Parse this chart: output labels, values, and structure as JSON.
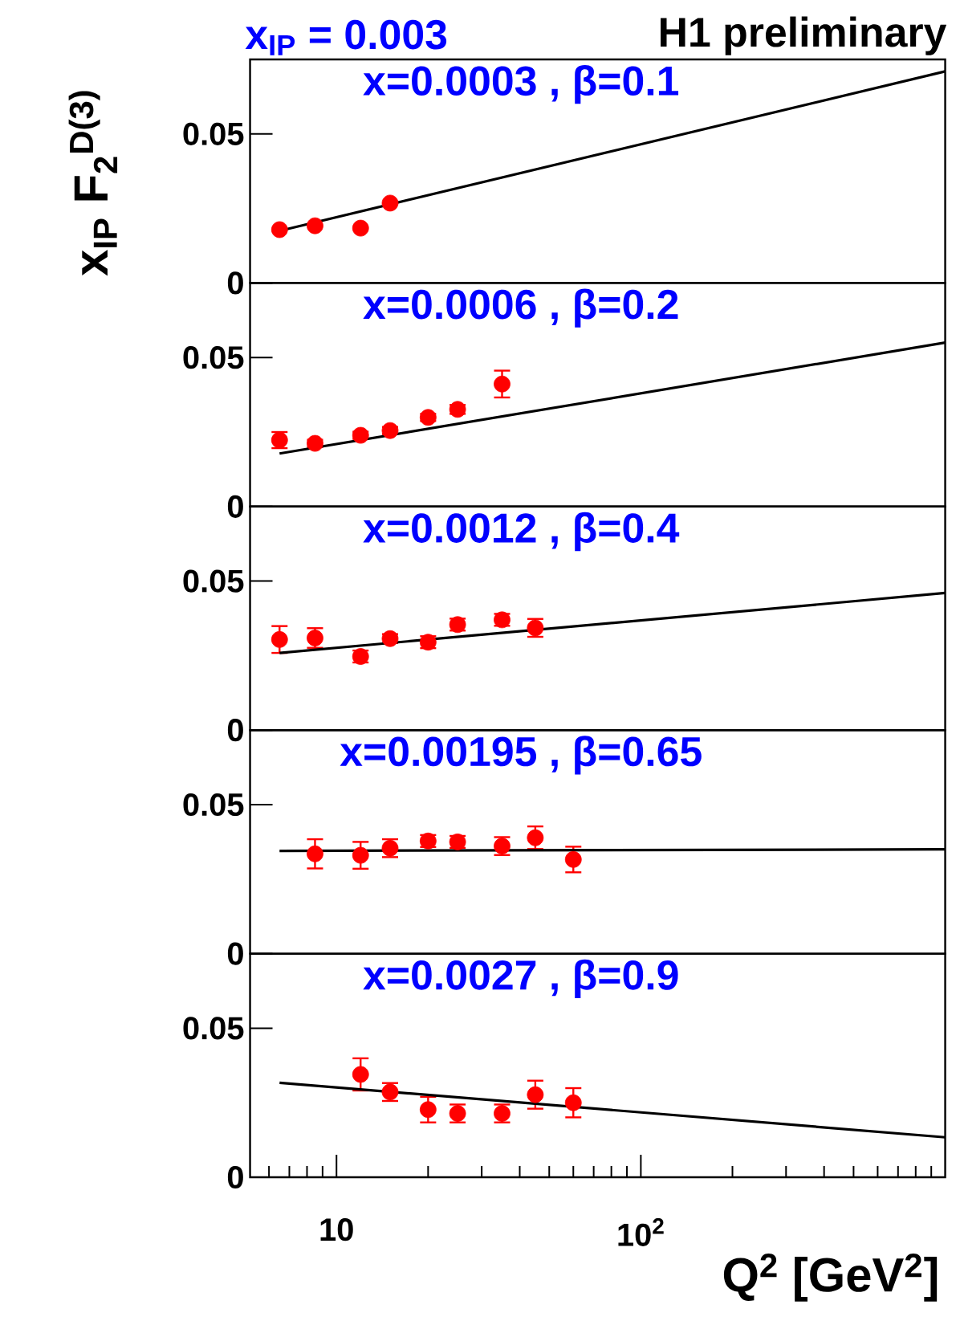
{
  "chart_data": [
    {
      "type": "scatter",
      "title": "x=0.0003 , β=0.1",
      "ylabel": "x$_{IP}$ F$_{2}$$^{D(3)}$",
      "annotations": [
        "x$_{IP}$ = 0.003",
        "H1 preliminary"
      ],
      "log": "x",
      "marker": "circle",
      "tick_labels": "y",
      "xlim": [
        5.2,
        1000
      ],
      "ylim": [
        0,
        0.075
      ],
      "yticks": [
        0,
        0.05
      ],
      "series": [
        {
          "color": "#ff0000",
          "x": [
            6.5,
            8.5,
            12,
            15
          ],
          "values": [
            0.0179,
            0.0192,
            0.0184,
            0.0268
          ]
        },
        {
          "type": "line",
          "marker": "none",
          "color": "#000000",
          "x": [
            6.5,
            1000
          ],
          "values": [
            0.0175,
            0.071
          ]
        }
      ]
    },
    {
      "type": "scatter",
      "title": "x=0.0006 , β=0.2",
      "log": "x",
      "marker": "circle",
      "tick_labels": "y",
      "xlim": [
        5.2,
        1000
      ],
      "ylim": [
        0,
        0.075
      ],
      "yticks": [
        0,
        0.05
      ],
      "series": [
        {
          "color": "#ff0000",
          "x": [
            6.5,
            8.5,
            12,
            15,
            20,
            25,
            35
          ],
          "values": [
            0.0223,
            0.0212,
            0.0239,
            0.0255,
            0.0299,
            0.0326,
            0.0411
          ],
          "errors": [
            0.0027,
            0.0012,
            0.0012,
            0.0012,
            0.0012,
            0.0015,
            0.0045
          ]
        },
        {
          "type": "line",
          "marker": "none",
          "color": "#000000",
          "x": [
            6.5,
            1000
          ],
          "values": [
            0.0178,
            0.055
          ]
        }
      ]
    },
    {
      "type": "scatter",
      "title": "x=0.0012 , β=0.4",
      "log": "x",
      "marker": "circle",
      "tick_labels": "y",
      "xlim": [
        5.2,
        1000
      ],
      "ylim": [
        0,
        0.075
      ],
      "yticks": [
        0,
        0.05
      ],
      "series": [
        {
          "color": "#ff0000",
          "x": [
            6.5,
            8.5,
            12,
            15,
            20,
            25,
            35,
            45
          ],
          "values": [
            0.0304,
            0.0309,
            0.0247,
            0.0307,
            0.0295,
            0.0354,
            0.037,
            0.0343
          ],
          "errors": [
            0.0045,
            0.0033,
            0.002,
            0.0015,
            0.002,
            0.002,
            0.002,
            0.003
          ]
        },
        {
          "type": "line",
          "marker": "none",
          "color": "#000000",
          "x": [
            6.5,
            1000
          ],
          "values": [
            0.0259,
            0.046
          ]
        }
      ]
    },
    {
      "type": "scatter",
      "title": "x=0.00195 , β=0.65",
      "log": "x",
      "marker": "circle",
      "tick_labels": "y",
      "xlim": [
        5.2,
        1000
      ],
      "ylim": [
        0,
        0.075
      ],
      "yticks": [
        0,
        0.05
      ],
      "series": [
        {
          "color": "#ff0000",
          "x": [
            8.5,
            12,
            15,
            20,
            25,
            35,
            45,
            60
          ],
          "values": [
            0.0335,
            0.033,
            0.0354,
            0.0378,
            0.0375,
            0.0361,
            0.0389,
            0.0316
          ],
          "errors": [
            0.0049,
            0.0045,
            0.003,
            0.002,
            0.002,
            0.003,
            0.0038,
            0.0043
          ]
        },
        {
          "type": "line",
          "marker": "none",
          "color": "#000000",
          "x": [
            6.5,
            1000
          ],
          "values": [
            0.0345,
            0.035
          ]
        }
      ]
    },
    {
      "type": "scatter",
      "title": "x=0.0027 , β=0.9",
      "xlabel": "Q$^{2}$ [GeV$^{2}$]",
      "log": "x",
      "marker": "circle",
      "xlim": [
        5.2,
        1000
      ],
      "ylim": [
        0,
        0.075
      ],
      "yticks": [
        0,
        0.05
      ],
      "xticks": [
        {
          "value": 6,
          "label": null
        },
        {
          "value": 7,
          "label": null
        },
        {
          "value": 8,
          "label": null
        },
        {
          "value": 9,
          "label": null
        },
        {
          "value": 10,
          "label": "10"
        },
        {
          "value": 20,
          "label": null
        },
        {
          "value": 30,
          "label": null
        },
        {
          "value": 40,
          "label": null
        },
        {
          "value": 50,
          "label": null
        },
        {
          "value": 60,
          "label": null
        },
        {
          "value": 70,
          "label": null
        },
        {
          "value": 80,
          "label": null
        },
        {
          "value": 90,
          "label": null
        },
        {
          "value": 100,
          "label": "10$^{2}$"
        },
        {
          "value": 200,
          "label": null
        },
        {
          "value": 300,
          "label": null
        },
        {
          "value": 400,
          "label": null
        },
        {
          "value": 500,
          "label": null
        },
        {
          "value": 600,
          "label": null
        },
        {
          "value": 700,
          "label": null
        },
        {
          "value": 800,
          "label": null
        },
        {
          "value": 900,
          "label": null
        }
      ],
      "series": [
        {
          "color": "#ff0000",
          "x": [
            12,
            15,
            20,
            25,
            35,
            45,
            60
          ],
          "values": [
            0.0345,
            0.0286,
            0.0227,
            0.0214,
            0.0214,
            0.0277,
            0.025
          ],
          "errors": [
            0.0054,
            0.003,
            0.0043,
            0.003,
            0.003,
            0.0047,
            0.0049
          ]
        },
        {
          "type": "line",
          "marker": "none",
          "color": "#000000",
          "x": [
            6.5,
            1000
          ],
          "values": [
            0.0317,
            0.0134
          ]
        }
      ]
    }
  ]
}
